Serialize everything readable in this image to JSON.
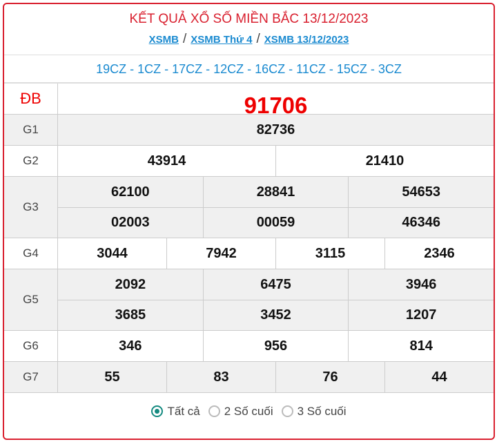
{
  "header": {
    "title": "KẾT QUẢ XỔ SỐ MIỀN BẮC 13/12/2023",
    "breadcrumbs": [
      "XSMB",
      "XSMB Thứ 4",
      "XSMB 13/12/2023"
    ],
    "separator": "/"
  },
  "codes": "19CZ - 1CZ - 17CZ - 12CZ - 16CZ - 11CZ - 15CZ - 3CZ",
  "prizes": [
    {
      "label": "ĐB",
      "rows": [
        [
          "91706"
        ]
      ]
    },
    {
      "label": "G1",
      "rows": [
        [
          "82736"
        ]
      ]
    },
    {
      "label": "G2",
      "rows": [
        [
          "43914",
          "21410"
        ]
      ]
    },
    {
      "label": "G3",
      "rows": [
        [
          "62100",
          "28841",
          "54653"
        ],
        [
          "02003",
          "00059",
          "46346"
        ]
      ]
    },
    {
      "label": "G4",
      "rows": [
        [
          "3044",
          "7942",
          "3115",
          "2346"
        ]
      ]
    },
    {
      "label": "G5",
      "rows": [
        [
          "2092",
          "6475",
          "3946"
        ],
        [
          "3685",
          "3452",
          "1207"
        ]
      ]
    },
    {
      "label": "G6",
      "rows": [
        [
          "346",
          "956",
          "814"
        ]
      ]
    },
    {
      "label": "G7",
      "rows": [
        [
          "55",
          "83",
          "76",
          "44"
        ]
      ]
    }
  ],
  "filter": {
    "options": [
      "Tất cả",
      "2 Số cuối",
      "3 Số cuối"
    ],
    "selected": "Tất cả"
  },
  "colors": {
    "accent": "#d9202f",
    "link": "#1a8ad0",
    "radio": "#148a80"
  }
}
